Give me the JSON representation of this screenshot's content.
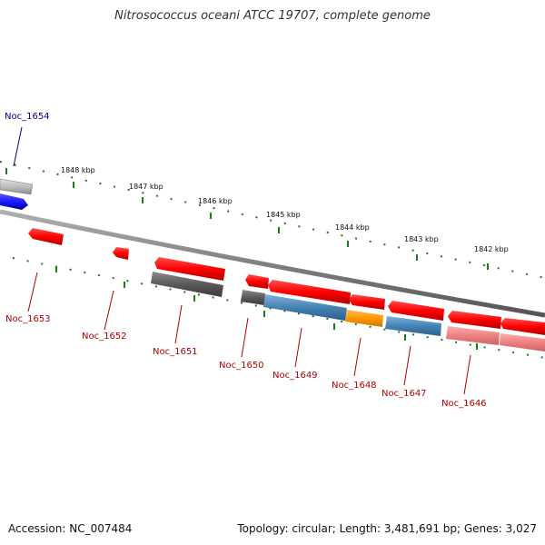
{
  "title": "Nitrosococcus oceani ATCC 19707, complete genome",
  "accession": "Accession: NC_007484",
  "summary": "Topology: circular; Length: 3,481,691 bp; Genes: 3,027",
  "colors": {
    "forward_gene": "#1a1aff",
    "reverse_gene": "#ff0000",
    "gray_gene": "#555555",
    "blue_gene": "#4682b4",
    "orange_gene": "#ff9900",
    "pink_gene": "#f08080",
    "tick_color": "#1a7a1a",
    "backbone": "#808080",
    "forward_label": "#00008b",
    "reverse_label": "#b00000"
  },
  "ticks": [
    "1848 kbp",
    "1847 kbp",
    "1846 kbp",
    "1845 kbp",
    "1844 kbp",
    "1843 kbp",
    "1842 kbp"
  ],
  "genes": {
    "forward": [
      "Noc_1654"
    ],
    "reverse": [
      "Noc_1653",
      "Noc_1652",
      "Noc_1651",
      "Noc_1650",
      "Noc_1649",
      "Noc_1648",
      "Noc_1647",
      "Noc_1646"
    ]
  }
}
